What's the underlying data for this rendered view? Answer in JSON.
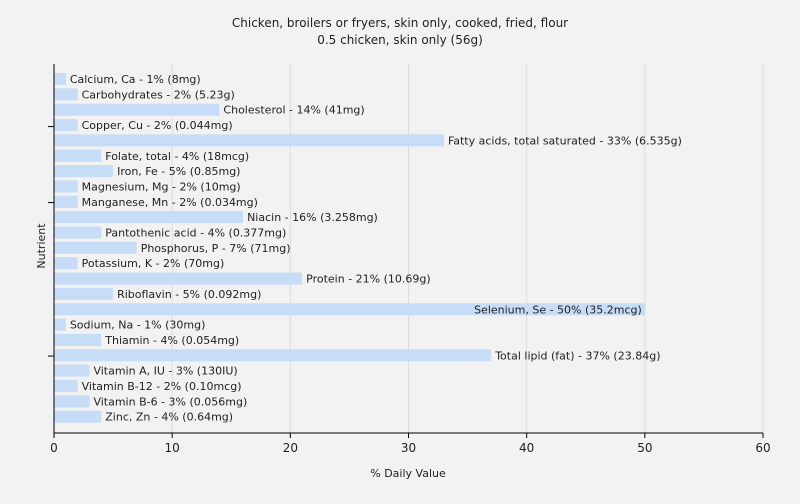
{
  "chart_data": {
    "type": "bar",
    "orientation": "horizontal",
    "title": "Chicken, broilers or fryers, skin only, cooked, fried, flour",
    "subtitle": "0.5 chicken, skin only (56g)",
    "xlabel": "% Daily Value",
    "ylabel": "Nutrient",
    "xlim": [
      0,
      60
    ],
    "xticks": [
      0,
      10,
      20,
      30,
      40,
      50,
      60
    ],
    "grid": true,
    "bar_color": "#c6dcf7",
    "categories": [
      "Calcium, Ca",
      "Carbohydrates",
      "Cholesterol",
      "Copper, Cu",
      "Fatty acids, total saturated",
      "Folate, total",
      "Iron, Fe",
      "Magnesium, Mg",
      "Manganese, Mn",
      "Niacin",
      "Pantothenic acid",
      "Phosphorus, P",
      "Potassium, K",
      "Protein",
      "Riboflavin",
      "Selenium, Se",
      "Sodium, Na",
      "Thiamin",
      "Total lipid (fat)",
      "Vitamin A, IU",
      "Vitamin B-12",
      "Vitamin B-6",
      "Zinc, Zn"
    ],
    "values": [
      1,
      2,
      14,
      2,
      33,
      4,
      5,
      2,
      2,
      16,
      4,
      7,
      2,
      21,
      5,
      50,
      1,
      4,
      37,
      3,
      2,
      3,
      4
    ],
    "labels": [
      "Calcium, Ca - 1% (8mg)",
      "Carbohydrates - 2% (5.23g)",
      "Cholesterol - 14% (41mg)",
      "Copper, Cu - 2% (0.044mg)",
      "Fatty acids, total saturated - 33% (6.535g)",
      "Folate, total - 4% (18mcg)",
      "Iron, Fe - 5% (0.85mg)",
      "Magnesium, Mg - 2% (10mg)",
      "Manganese, Mn - 2% (0.034mg)",
      "Niacin - 16% (3.258mg)",
      "Pantothenic acid - 4% (0.377mg)",
      "Phosphorus, P - 7% (71mg)",
      "Potassium, K - 2% (70mg)",
      "Protein - 21% (10.69g)",
      "Riboflavin - 5% (0.092mg)",
      "Selenium, Se - 50% (35.2mcg)",
      "Sodium, Na - 1% (30mg)",
      "Thiamin - 4% (0.054mg)",
      "Total lipid (fat) - 37% (23.84g)",
      "Vitamin A, IU - 3% (130IU)",
      "Vitamin B-12 - 2% (0.10mcg)",
      "Vitamin B-6 - 3% (0.056mg)",
      "Zinc, Zn - 4% (0.64mg)"
    ]
  }
}
